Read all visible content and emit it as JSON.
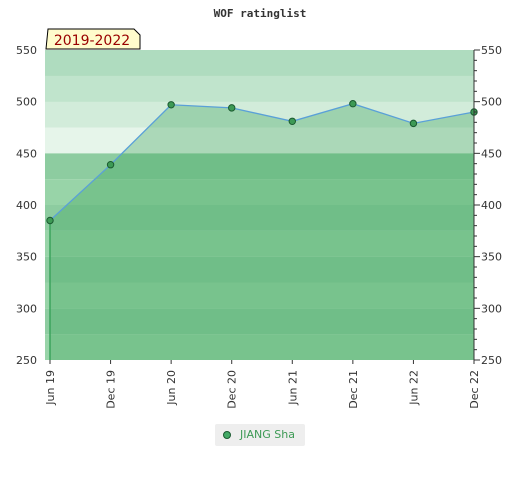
{
  "chart_data": {
    "type": "area",
    "title": "WOF ratinglist",
    "period_label": "2019-2022",
    "categories": [
      "Jun 19",
      "Dec 19",
      "Jun 20",
      "Dec 20",
      "Jun 21",
      "Dec 21",
      "Jun 22",
      "Dec 22"
    ],
    "series": [
      {
        "name": "JIANG Sha",
        "values": [
          385,
          439,
          497,
          494,
          481,
          498,
          479,
          490
        ]
      }
    ],
    "ylim": [
      250,
      550
    ],
    "yticks": [
      250,
      300,
      350,
      400,
      450,
      500,
      550
    ],
    "grid": true,
    "legend_position": "bottom",
    "colors": {
      "line": "#5aa0d8",
      "area": "#3ba35c",
      "marker_fill": "#3d9a55",
      "marker_stroke": "#1a5a30",
      "label_bg": "#fffccc"
    }
  }
}
